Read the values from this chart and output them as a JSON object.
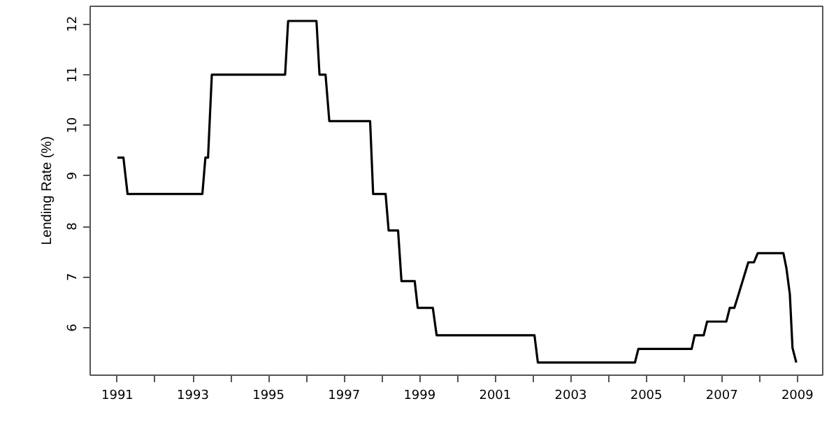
{
  "chart_data": {
    "type": "line",
    "ylabel": "Lending Rate (%)",
    "x": [
      1991.0,
      1991.16,
      1991.27,
      1993.25,
      1993.33,
      1993.4,
      1993.5,
      1995.44,
      1995.52,
      1996.27,
      1996.35,
      1996.51,
      1996.61,
      1997.69,
      1997.77,
      1998.1,
      1998.18,
      1998.43,
      1998.52,
      1998.87,
      1998.95,
      1999.35,
      1999.45,
      2002.04,
      2002.13,
      2004.7,
      2004.79,
      2006.2,
      2006.28,
      2006.52,
      2006.61,
      2007.12,
      2007.21,
      2007.33,
      2007.41,
      2007.7,
      2007.85,
      2007.95,
      2008.63,
      2008.71,
      2008.8,
      2008.87,
      2008.97
    ],
    "series": [
      {
        "color": "#000000",
        "values": [
          9.36,
          9.36,
          8.64,
          8.64,
          9.36,
          9.36,
          11.0,
          11.0,
          12.06,
          12.06,
          11.0,
          11.0,
          10.08,
          10.08,
          8.64,
          8.64,
          7.92,
          7.92,
          6.92,
          6.92,
          6.39,
          6.39,
          5.85,
          5.85,
          5.31,
          5.31,
          5.58,
          5.58,
          5.85,
          5.85,
          6.12,
          6.12,
          6.39,
          6.39,
          6.58,
          7.29,
          7.29,
          7.47,
          7.47,
          7.17,
          6.66,
          5.6,
          5.31
        ]
      }
    ],
    "xlim": [
      1990.28,
      2009.67
    ],
    "ylim": [
      5.06,
      12.35
    ],
    "xticks": [
      1991,
      {
        "value": 1992,
        "label": null
      },
      1993,
      {
        "value": 1994,
        "label": null
      },
      1995,
      {
        "value": 1996,
        "label": null
      },
      1997,
      {
        "value": 1998,
        "label": null
      },
      1999,
      {
        "value": 2000,
        "label": null
      },
      2001,
      {
        "value": 2002,
        "label": null
      },
      2003,
      {
        "value": 2004,
        "label": null
      },
      2005,
      {
        "value": 2006,
        "label": null
      },
      2007,
      {
        "value": 2008,
        "label": null
      },
      2009
    ],
    "yticks": [
      6,
      7,
      8,
      9,
      10,
      11,
      12
    ],
    "grid": false,
    "marker": "none",
    "line_style": "solid"
  }
}
